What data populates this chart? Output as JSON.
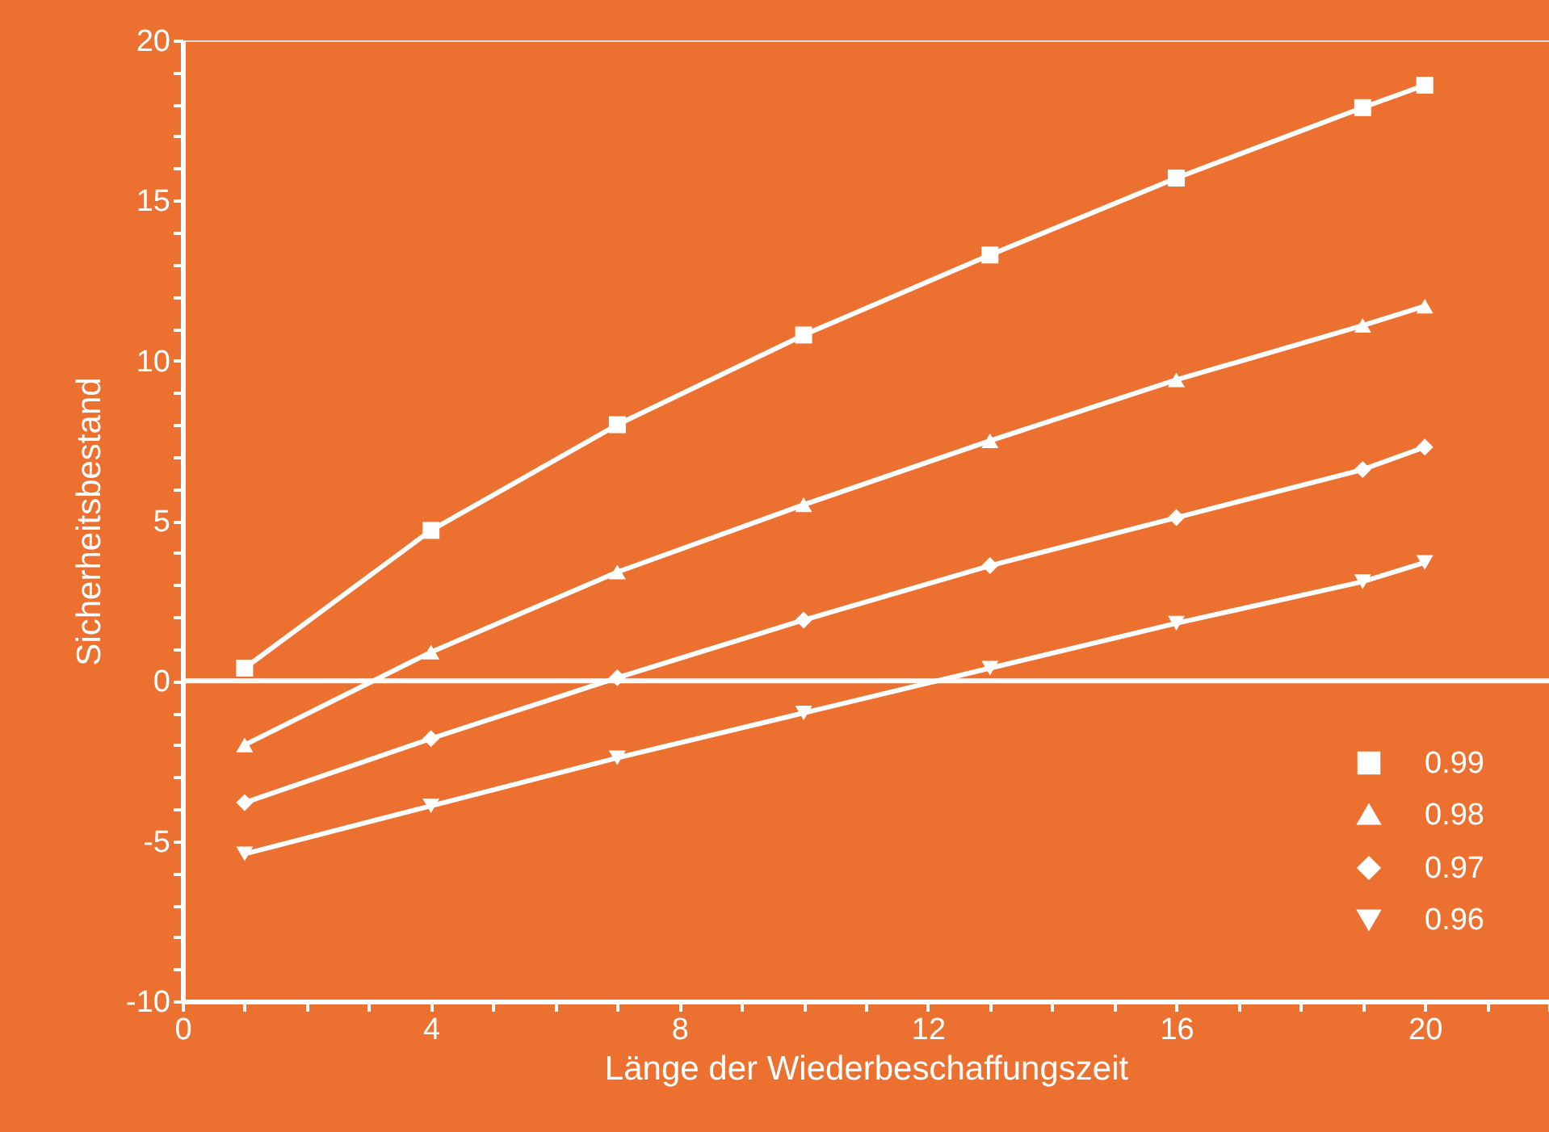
{
  "chart_data": {
    "type": "line",
    "xlabel": "Länge der Wiederbeschaffungszeit",
    "ylabel": "Sicherheitsbestand",
    "x": [
      1,
      4,
      7,
      10,
      13,
      16,
      19,
      20
    ],
    "series": [
      {
        "name": "0.99",
        "color": "#ffffff",
        "marker": "square",
        "values": [
          0.4,
          4.7,
          8.0,
          10.8,
          13.3,
          15.7,
          17.9,
          18.6
        ]
      },
      {
        "name": "0.98",
        "color": "#ffffff",
        "marker": "triangle",
        "values": [
          -2.0,
          0.9,
          3.4,
          5.5,
          7.5,
          9.4,
          11.1,
          11.7
        ]
      },
      {
        "name": "0.97",
        "color": "#ffffff",
        "marker": "diamond",
        "values": [
          -3.8,
          -1.8,
          0.1,
          1.9,
          3.6,
          5.1,
          6.6,
          7.3
        ]
      },
      {
        "name": "0.96",
        "color": "#ffffff",
        "marker": "triangle-down",
        "values": [
          -5.4,
          -3.9,
          -2.4,
          -1.0,
          0.4,
          1.8,
          3.1,
          3.7
        ]
      }
    ],
    "xlim": [
      0,
      22
    ],
    "ylim": [
      -10,
      20
    ],
    "xticks": [
      0,
      {
        "value": 1,
        "label": null
      },
      {
        "value": 2,
        "label": null
      },
      {
        "value": 3,
        "label": null
      },
      4,
      {
        "value": 5,
        "label": null
      },
      {
        "value": 6,
        "label": null
      },
      {
        "value": 7,
        "label": null
      },
      8,
      {
        "value": 9,
        "label": null
      },
      {
        "value": 10,
        "label": null
      },
      {
        "value": 11,
        "label": null
      },
      12,
      {
        "value": 13,
        "label": null
      },
      {
        "value": 14,
        "label": null
      },
      {
        "value": 15,
        "label": null
      },
      16,
      {
        "value": 17,
        "label": null
      },
      {
        "value": 18,
        "label": null
      },
      {
        "value": 19,
        "label": null
      },
      20,
      {
        "value": 21,
        "label": null
      },
      {
        "value": 22,
        "label": null
      }
    ],
    "yticks": [
      -10,
      {
        "value": -9,
        "label": null
      },
      {
        "value": -8,
        "label": null
      },
      {
        "value": -7,
        "label": null
      },
      {
        "value": -6,
        "label": null
      },
      -5,
      {
        "value": -4,
        "label": null
      },
      {
        "value": -3,
        "label": null
      },
      {
        "value": -2,
        "label": null
      },
      {
        "value": -1,
        "label": null
      },
      0,
      {
        "value": 1,
        "label": null
      },
      {
        "value": 2,
        "label": null
      },
      {
        "value": 3,
        "label": null
      },
      {
        "value": 4,
        "label": null
      },
      5,
      {
        "value": 6,
        "label": null
      },
      {
        "value": 7,
        "label": null
      },
      {
        "value": 8,
        "label": null
      },
      {
        "value": 9,
        "label": null
      },
      10,
      {
        "value": 11,
        "label": null
      },
      {
        "value": 12,
        "label": null
      },
      {
        "value": 13,
        "label": null
      },
      {
        "value": 14,
        "label": null
      },
      15,
      {
        "value": 16,
        "label": null
      },
      {
        "value": 17,
        "label": null
      },
      {
        "value": 18,
        "label": null
      },
      {
        "value": 19,
        "label": null
      },
      20
    ],
    "ref_lines": [
      {
        "axis": "y",
        "value": 0,
        "color": "#ffffff"
      }
    ],
    "grid": false,
    "legend": "bottom right",
    "line_style": "solid"
  }
}
